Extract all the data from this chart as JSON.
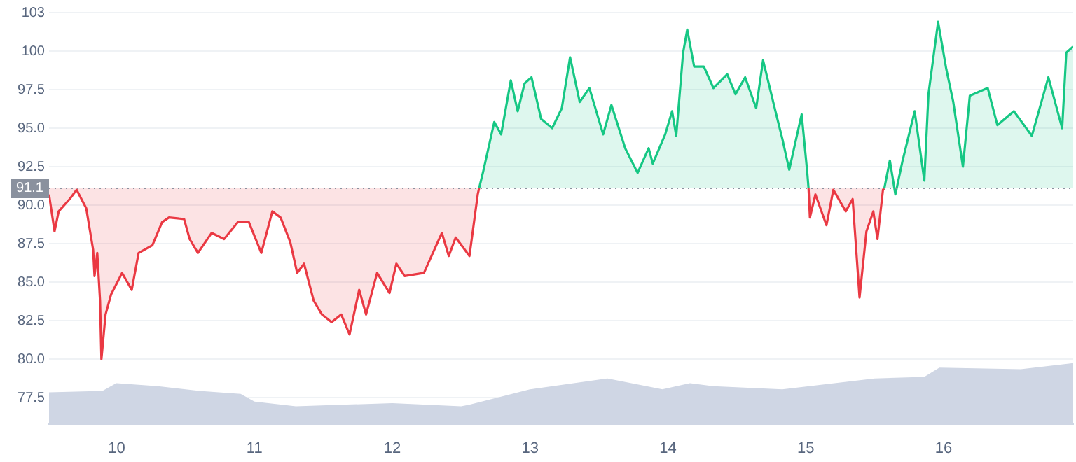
{
  "chart_data": {
    "type": "line",
    "xlim": [
      9.51,
      16.94
    ],
    "xticks": [
      10,
      11,
      12,
      13,
      14,
      15,
      16
    ],
    "ylim": [
      75.8,
      102.5
    ],
    "yticks": [
      77.5,
      {
        "value": 80,
        "label": "80.0"
      },
      82.5,
      {
        "value": 85,
        "label": "85.0"
      },
      87.5,
      {
        "value": 90,
        "label": "90.0"
      },
      92.5,
      {
        "value": 95,
        "label": "95.0"
      },
      97.5,
      100,
      {
        "value": 102.5,
        "label": "103"
      }
    ],
    "grid": "y",
    "legend": false,
    "marker": "none",
    "line_style": "solid",
    "ref_lines": [
      {
        "axis": "y",
        "value": 91.1,
        "label": "91.1",
        "color": "#8a919e",
        "line_style": "dotted"
      }
    ],
    "series": [
      {
        "type": "area",
        "color": "#cfd6e4",
        "x": [
          9.51,
          9.9,
          10.0,
          10.3,
          10.6,
          10.9,
          11.0,
          11.3,
          12.0,
          12.5,
          12.56,
          13.0,
          13.56,
          13.96,
          14.16,
          14.33,
          14.83,
          15.5,
          15.86,
          15.97,
          16.56,
          16.94
        ],
        "values": [
          77.8,
          77.9,
          78.4,
          78.2,
          77.9,
          77.7,
          77.2,
          76.9,
          77.1,
          76.9,
          77.0,
          78.0,
          78.7,
          78.0,
          78.4,
          78.2,
          78.0,
          78.7,
          78.8,
          79.4,
          79.3,
          79.7
        ]
      },
      {
        "color": "#ea3943",
        "x": [
          9.51,
          9.55,
          9.58,
          9.66,
          9.71,
          9.78,
          9.83,
          9.84,
          9.86,
          9.88,
          9.89,
          9.92,
          9.96,
          10.04,
          10.11,
          10.16,
          10.26,
          10.33,
          10.38,
          10.49,
          10.53,
          10.59,
          10.69,
          10.78,
          10.88,
          10.96,
          11.05,
          11.13,
          11.19,
          11.26,
          11.31,
          11.36,
          11.43,
          11.49,
          11.56,
          11.63,
          11.69,
          11.76,
          11.81,
          11.89,
          11.98,
          12.03,
          12.09,
          12.23,
          12.36,
          12.41,
          12.46,
          12.56,
          12.59,
          12.62,
          12.63,
          null,
          15.02,
          15.03,
          15.07,
          15.15,
          15.2,
          15.29,
          15.34,
          15.39,
          15.44,
          15.49,
          15.52,
          15.56,
          15.57
        ],
        "values": [
          90.7,
          88.3,
          89.6,
          90.4,
          91.0,
          89.8,
          87.1,
          85.4,
          86.9,
          83.8,
          80.0,
          82.9,
          84.2,
          85.6,
          84.5,
          86.9,
          87.4,
          88.9,
          89.2,
          89.1,
          87.8,
          86.9,
          88.2,
          87.8,
          88.9,
          88.9,
          86.9,
          89.6,
          89.2,
          87.6,
          85.6,
          86.2,
          83.8,
          82.9,
          82.4,
          82.9,
          81.6,
          84.5,
          82.9,
          85.6,
          84.3,
          86.2,
          85.4,
          85.6,
          88.2,
          86.7,
          87.9,
          86.7,
          88.7,
          90.7,
          91.1,
          null,
          91.1,
          89.2,
          90.7,
          88.7,
          91.0,
          89.6,
          90.4,
          84.0,
          88.3,
          89.6,
          87.8,
          91.0,
          91.1
        ]
      },
      {
        "color": "#16c784",
        "x": [
          12.63,
          12.66,
          12.74,
          12.79,
          12.86,
          12.91,
          12.96,
          13.01,
          13.08,
          13.16,
          13.23,
          13.29,
          13.36,
          13.43,
          13.53,
          13.59,
          13.69,
          13.78,
          13.86,
          13.89,
          13.98,
          14.03,
          14.06,
          14.11,
          14.14,
          14.19,
          14.26,
          14.33,
          14.43,
          14.49,
          14.56,
          14.64,
          14.69,
          14.78,
          14.83,
          14.88,
          14.93,
          14.97,
          15.01,
          15.02,
          null,
          15.57,
          15.61,
          15.65,
          15.7,
          15.79,
          15.86,
          15.89,
          15.96,
          16.02,
          16.07,
          16.14,
          16.19,
          16.32,
          16.39,
          16.51,
          16.64,
          16.76,
          16.86,
          16.89,
          16.94
        ],
        "values": [
          91.1,
          92.2,
          95.4,
          94.6,
          98.1,
          96.1,
          97.9,
          98.3,
          95.6,
          95.0,
          96.3,
          99.6,
          96.7,
          97.6,
          94.6,
          96.5,
          93.7,
          92.1,
          93.7,
          92.7,
          94.6,
          96.1,
          94.5,
          99.9,
          101.4,
          99.0,
          99.0,
          97.6,
          98.5,
          97.2,
          98.3,
          96.3,
          99.4,
          96.1,
          94.3,
          92.3,
          94.3,
          95.9,
          92.2,
          91.1,
          null,
          91.1,
          92.9,
          90.7,
          92.8,
          96.1,
          91.6,
          97.2,
          101.9,
          98.8,
          96.7,
          92.5,
          97.1,
          97.6,
          95.2,
          96.1,
          94.5,
          98.3,
          95.0,
          99.9,
          100.3
        ]
      }
    ]
  }
}
